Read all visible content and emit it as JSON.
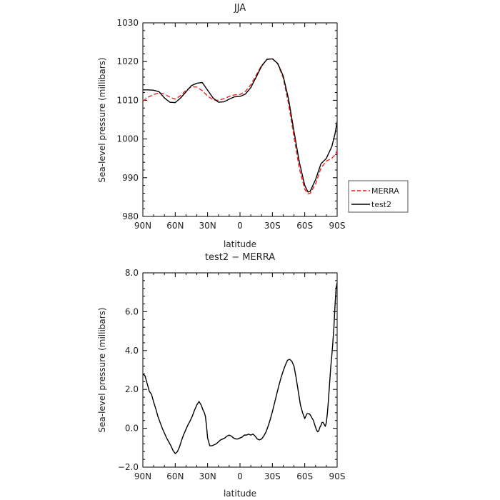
{
  "chart_data": [
    {
      "type": "line",
      "title": "JJA",
      "xlabel": "latitude",
      "ylabel": "Sea-level pressure (millibars)",
      "xlim": [
        90,
        -90
      ],
      "ylim": [
        980,
        1030
      ],
      "x_ticks": [
        90,
        60,
        30,
        0,
        -30,
        -60,
        -90
      ],
      "x_tick_labels": [
        "90N",
        "60N",
        "30N",
        "0",
        "30S",
        "60S",
        "90S"
      ],
      "y_ticks": [
        980,
        990,
        1000,
        1010,
        1020,
        1030
      ],
      "y_tick_labels": [
        "980",
        "990",
        "1000",
        "1010",
        "1020",
        "1030"
      ],
      "legend_position": "outside-right",
      "series": [
        {
          "name": "MERRA",
          "color": "#e8251f",
          "dash": "dashed",
          "x": [
            90,
            85,
            80,
            75,
            70,
            65,
            60,
            55,
            50,
            45,
            40,
            35,
            30,
            25,
            20,
            15,
            10,
            5,
            0,
            -5,
            -10,
            -15,
            -20,
            -25,
            -30,
            -35,
            -40,
            -45,
            -50,
            -55,
            -60,
            -63,
            -65,
            -70,
            -75,
            -80,
            -85,
            -88,
            -90
          ],
          "values": [
            1009.8,
            1010.8,
            1011.5,
            1011.9,
            1011.6,
            1010.8,
            1010.3,
            1011.2,
            1012.6,
            1013.5,
            1013.4,
            1012.5,
            1011.1,
            1010.1,
            1010.0,
            1010.4,
            1011.0,
            1011.4,
            1011.5,
            1012.3,
            1014.0,
            1016.5,
            1019.0,
            1020.5,
            1020.8,
            1019.4,
            1015.8,
            1009.0,
            1000.5,
            992.3,
            987.0,
            985.8,
            986.0,
            988.4,
            992.5,
            994.3,
            995.0,
            995.9,
            997.0
          ]
        },
        {
          "name": "test2",
          "color": "#000000",
          "dash": "solid",
          "x": [
            90,
            85,
            80,
            75,
            70,
            65,
            60,
            55,
            50,
            45,
            40,
            35,
            30,
            25,
            20,
            15,
            10,
            5,
            0,
            -5,
            -10,
            -15,
            -20,
            -25,
            -30,
            -35,
            -40,
            -45,
            -50,
            -55,
            -60,
            -63,
            -65,
            -70,
            -75,
            -80,
            -85,
            -88,
            -90
          ],
          "values": [
            1012.7,
            1012.7,
            1012.6,
            1012.2,
            1010.6,
            1009.5,
            1009.4,
            1010.6,
            1012.2,
            1013.8,
            1014.4,
            1014.6,
            1012.6,
            1010.6,
            1009.5,
            1009.6,
            1010.3,
            1010.9,
            1011.0,
            1011.6,
            1013.3,
            1016.0,
            1018.8,
            1020.6,
            1020.7,
            1019.5,
            1016.3,
            1010.3,
            1002.0,
            994.0,
            988.0,
            986.3,
            986.5,
            989.5,
            993.6,
            995.0,
            998.0,
            1001.3,
            1004.5
          ]
        }
      ]
    },
    {
      "type": "line",
      "title": "test2 − MERRA",
      "xlabel": "latitude",
      "ylabel": "Sea-level pressure (millibars)",
      "xlim": [
        90,
        -90
      ],
      "ylim": [
        -2.0,
        8.0
      ],
      "x_ticks": [
        90,
        60,
        30,
        0,
        -30,
        -60,
        -90
      ],
      "x_tick_labels": [
        "90N",
        "60N",
        "30N",
        "0",
        "30S",
        "60S",
        "90S"
      ],
      "y_ticks": [
        -2,
        0,
        2,
        4,
        6,
        8
      ],
      "y_tick_labels": [
        "−2.0",
        "0.0",
        "2.0",
        "4.0",
        "6.0",
        "8.0"
      ],
      "series": [
        {
          "color": "#000000",
          "dash": "solid",
          "x": [
            90,
            88,
            86,
            84,
            82,
            80,
            78,
            76,
            74,
            72,
            70,
            68,
            66,
            64,
            62,
            60,
            58,
            56,
            54,
            52,
            50,
            48,
            46,
            44,
            42,
            40,
            38,
            36,
            34,
            33,
            32,
            31,
            30,
            28,
            26,
            24,
            22,
            20,
            18,
            16,
            14,
            12,
            10,
            8,
            6,
            4,
            2,
            0,
            -2,
            -4,
            -6,
            -8,
            -10,
            -12,
            -14,
            -16,
            -18,
            -20,
            -22,
            -24,
            -26,
            -28,
            -30,
            -32,
            -34,
            -36,
            -38,
            -40,
            -42,
            -44,
            -46,
            -48,
            -50,
            -52,
            -54,
            -56,
            -58,
            -60,
            -62,
            -64,
            -65,
            -66,
            -68,
            -70,
            -71,
            -72,
            -73,
            -74,
            -75,
            -76,
            -77,
            -78,
            -79,
            -80,
            -81,
            -82,
            -83,
            -84,
            -85,
            -86,
            -87,
            -88,
            -89,
            -90
          ],
          "values": [
            2.8,
            2.7,
            2.3,
            1.9,
            1.75,
            1.35,
            1.0,
            0.6,
            0.3,
            0.0,
            -0.25,
            -0.5,
            -0.7,
            -0.9,
            -1.15,
            -1.3,
            -1.2,
            -0.95,
            -0.6,
            -0.3,
            -0.05,
            0.2,
            0.4,
            0.65,
            0.95,
            1.2,
            1.38,
            1.2,
            0.9,
            0.8,
            0.6,
            0.1,
            -0.5,
            -0.9,
            -0.9,
            -0.85,
            -0.8,
            -0.7,
            -0.6,
            -0.55,
            -0.5,
            -0.4,
            -0.35,
            -0.4,
            -0.5,
            -0.55,
            -0.55,
            -0.5,
            -0.45,
            -0.35,
            -0.35,
            -0.3,
            -0.35,
            -0.3,
            -0.4,
            -0.55,
            -0.6,
            -0.55,
            -0.4,
            -0.2,
            0.1,
            0.45,
            0.85,
            1.3,
            1.75,
            2.2,
            2.6,
            2.95,
            3.25,
            3.5,
            3.55,
            3.45,
            3.2,
            2.6,
            1.9,
            1.2,
            0.8,
            0.5,
            0.75,
            0.75,
            0.7,
            0.6,
            0.4,
            0.05,
            -0.1,
            -0.18,
            -0.12,
            0.05,
            0.15,
            0.3,
            0.3,
            0.2,
            0.1,
            0.3,
            0.8,
            1.5,
            2.3,
            3.1,
            3.7,
            4.4,
            5.2,
            6.3,
            7.2,
            7.5
          ]
        }
      ]
    }
  ]
}
